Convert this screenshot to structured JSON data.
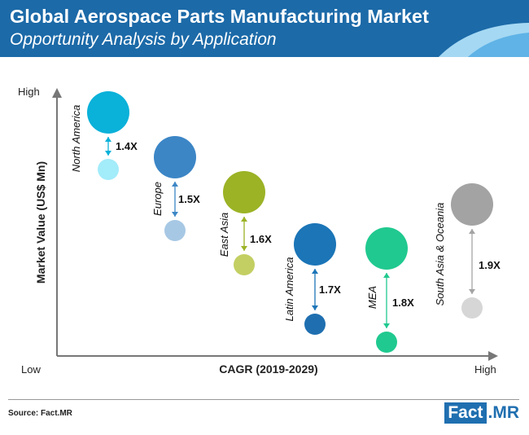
{
  "header": {
    "title": "Global Aerospace Parts Manufacturing Market",
    "subtitle": "Opportunity Analysis by Application"
  },
  "colors": {
    "header_bg": "#1c6aa8",
    "accent_light": "#5fb3e6",
    "accent_lighter": "#a5d8f3",
    "logo_blue": "#1f6fb0"
  },
  "chart_data": {
    "type": "bubble",
    "xlabel": "CAGR (2019-2029)",
    "ylabel": "Market Value (US$ Mn)",
    "x_low_label": "Low",
    "x_high_label": "High",
    "y_high_label": "High",
    "series": [
      {
        "name": "North America",
        "multiplier": "1.4X",
        "color": "#0ab1d9",
        "light_color": "#a3ecfa"
      },
      {
        "name": "Europe",
        "multiplier": "1.5X",
        "color": "#3c86c6",
        "light_color": "#a7c8e4"
      },
      {
        "name": "East Asia",
        "multiplier": "1.6X",
        "color": "#9bb325",
        "light_color": "#c3cf62"
      },
      {
        "name": "Latin America",
        "multiplier": "1.7X",
        "color": "#1b75b7",
        "light_color": "#1f6fb0"
      },
      {
        "name": "MEA",
        "multiplier": "1.8X",
        "color": "#20c98f",
        "light_color": "#20c98f"
      },
      {
        "name": "South Asia & Oceania",
        "multiplier": "1.9X",
        "color": "#a3a3a3",
        "light_color": "#d6d6d6"
      }
    ]
  },
  "footer": {
    "source": "Source: Fact.MR",
    "logo_left": "Fact",
    "logo_right": ".MR"
  }
}
